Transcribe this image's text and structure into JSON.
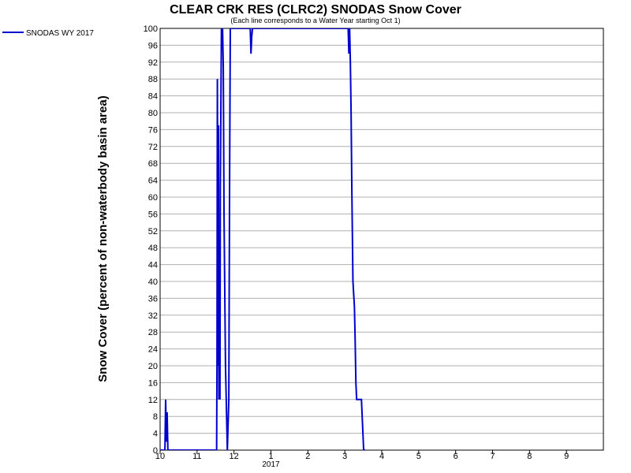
{
  "chart_data": {
    "type": "line",
    "title": "CLEAR CRK RES (CLRC2) SNODAS Snow Cover",
    "subtitle": "(Each line corresponds to a Water Year starting Oct 1)",
    "y_label": "Snow Cover (percent of non-waterbody basin area)",
    "x_sublabel": "2017",
    "legend": "top-left",
    "grid": true,
    "xlim": [
      0,
      12
    ],
    "xticks": [
      {
        "value": 0,
        "label": "10"
      },
      {
        "value": 1,
        "label": "11"
      },
      {
        "value": 2,
        "label": "12"
      },
      {
        "value": 3,
        "label": "1"
      },
      {
        "value": 4,
        "label": "2"
      },
      {
        "value": 5,
        "label": "3"
      },
      {
        "value": 6,
        "label": "4"
      },
      {
        "value": 7,
        "label": "5"
      },
      {
        "value": 8,
        "label": "6"
      },
      {
        "value": 9,
        "label": "7"
      },
      {
        "value": 10,
        "label": "8"
      },
      {
        "value": 11,
        "label": "9"
      }
    ],
    "ylim": [
      0,
      100
    ],
    "yticks": [
      0,
      4,
      8,
      12,
      16,
      20,
      24,
      28,
      32,
      36,
      40,
      44,
      48,
      52,
      56,
      60,
      64,
      68,
      72,
      76,
      80,
      84,
      88,
      92,
      96,
      100
    ],
    "x": [
      0,
      0.13,
      0.15,
      0.17,
      0.19,
      0.21,
      1.53,
      1.54,
      1.55,
      1.57,
      1.58,
      1.59,
      1.6,
      1.62,
      1.63,
      1.66,
      1.69,
      1.71,
      1.73,
      1.77,
      1.82,
      1.86,
      1.88,
      1.9,
      2.44,
      2.46,
      2.48,
      2.5,
      5.09,
      5.11,
      5.12,
      5.13,
      5.15,
      5.17,
      5.19,
      5.22,
      5.26,
      5.28,
      5.3,
      5.32,
      5.45,
      5.49,
      5.51,
      5.55
    ],
    "series": [
      {
        "name": "SNODAS WY 2017",
        "color": "#0000cc",
        "values": [
          0,
          0,
          12,
          2,
          9,
          0,
          0,
          22,
          88,
          20,
          77,
          12,
          33,
          12,
          62,
          100,
          100,
          91,
          56,
          20,
          0,
          12,
          62,
          100,
          100,
          94,
          98,
          100,
          100,
          94,
          98,
          100,
          92,
          80,
          62,
          40,
          34,
          26,
          16,
          12,
          12,
          4,
          0,
          0
        ]
      }
    ]
  }
}
